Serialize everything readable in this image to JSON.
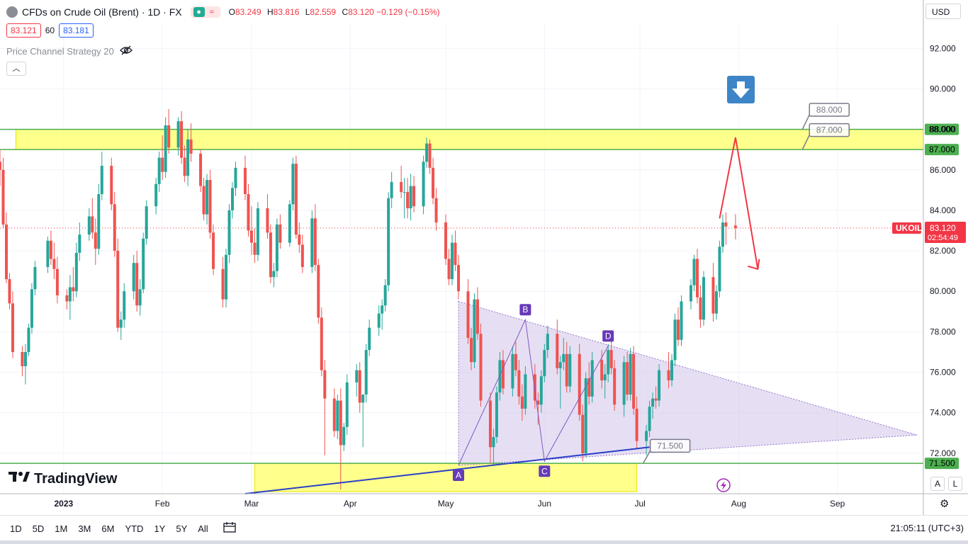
{
  "header": {
    "title": "CFDs on Crude Oil (Brent) · 1D · FX",
    "ohlc": [
      {
        "label": "O",
        "value": "83.249"
      },
      {
        "label": "H",
        "value": "83.816"
      },
      {
        "label": "L",
        "value": "82.559"
      },
      {
        "label": "C",
        "value": "83.120 −0.129 (−0.15%)"
      }
    ],
    "bid": "83.121",
    "spread": "60",
    "ask": "83.181",
    "indicator": "Price Channel Strategy 20",
    "currency": "USD"
  },
  "logo": "TradingView",
  "bottombar": {
    "timeframes": [
      "1D",
      "5D",
      "1M",
      "3M",
      "6M",
      "YTD",
      "1Y",
      "5Y",
      "All"
    ],
    "clock": "21:05:11 (UTC+3)",
    "scale_buttons": [
      "A",
      "L"
    ]
  },
  "colors": {
    "up": "#26a69a",
    "down": "#ef5350",
    "level_line": "#4caf50",
    "zone_fill": "#ffff66",
    "triangle_fill": "#d1c4e9",
    "pattern_label": "#673ab7",
    "arrow": "#f23645",
    "trendline": "#2a3fc8",
    "price_label": "#f23645"
  },
  "chart_data": {
    "type": "candlestick",
    "symbol_label": "UKOIL",
    "last_price": "83.120",
    "countdown": "02:54:49",
    "ylim": [
      70.0,
      93.2
    ],
    "y_ticks": [
      "92.000",
      "90.000",
      "88.000",
      "86.000",
      "84.000",
      "82.000",
      "80.000",
      "78.000",
      "76.000",
      "74.000",
      "72.000"
    ],
    "x_ticks": [
      {
        "label": "2023",
        "date": "2023-01-01"
      },
      {
        "label": "Feb",
        "date": "2023-02-01"
      },
      {
        "label": "Mar",
        "date": "2023-03-01"
      },
      {
        "label": "Apr",
        "date": "2023-04-01"
      },
      {
        "label": "May",
        "date": "2023-05-01"
      },
      {
        "label": "Jun",
        "date": "2023-06-01"
      },
      {
        "label": "Jul",
        "date": "2023-07-01"
      },
      {
        "label": "Aug",
        "date": "2023-08-01"
      },
      {
        "label": "Sep",
        "date": "2023-09-01"
      }
    ],
    "x_range": [
      "2022-12-12",
      "2023-09-28"
    ],
    "levels": [
      {
        "value": 88.0,
        "label": "88.000"
      },
      {
        "value": 87.0,
        "label": "87.000"
      },
      {
        "value": 71.5,
        "label": "71.500"
      }
    ],
    "zones": [
      {
        "from_date": "2022-12-17",
        "to_date": "2023-09-28",
        "top": 88.0,
        "bottom": 87.0
      },
      {
        "from_date": "2023-03-02",
        "to_date": "2023-06-30",
        "top": 71.5,
        "bottom": 70.1
      }
    ],
    "triangle": [
      {
        "date": "2023-05-05",
        "value": 79.5
      },
      {
        "date": "2023-09-26",
        "value": 72.9
      },
      {
        "date": "2023-05-05",
        "value": 71.4
      }
    ],
    "pattern_points": [
      {
        "label": "A",
        "date": "2023-05-05",
        "value": 71.4
      },
      {
        "label": "B",
        "date": "2023-05-26",
        "value": 78.6
      },
      {
        "label": "C",
        "date": "2023-06-01",
        "value": 71.6
      },
      {
        "label": "D",
        "date": "2023-06-21",
        "value": 77.3
      }
    ],
    "trendline": {
      "from": {
        "date": "2023-02-27",
        "value": 70.0
      },
      "to": {
        "date": "2023-07-04",
        "value": 72.3
      }
    },
    "callouts": [
      {
        "text": "88.000",
        "value": 88.0,
        "box_value": 89.0,
        "anchor_date": "2023-08-21"
      },
      {
        "text": "87.000",
        "value": 87.0,
        "box_value": 88.0,
        "anchor_date": "2023-08-21"
      },
      {
        "text": "71.500",
        "value": 71.5,
        "box_value": 72.4,
        "anchor_date": "2023-07-02"
      }
    ],
    "forecast_arrow": [
      {
        "date": "2023-07-26",
        "value": 83.6
      },
      {
        "date": "2023-07-31",
        "value": 87.6
      },
      {
        "date": "2023-08-07",
        "value": 81.1
      }
    ],
    "ohlc_data": [
      [
        "2022-12-12",
        86.4,
        87.0,
        85.2,
        86.0
      ],
      [
        "2022-12-13",
        86.0,
        86.6,
        83.1,
        83.3
      ],
      [
        "2022-12-14",
        83.3,
        83.9,
        80.4,
        80.6
      ],
      [
        "2022-12-15",
        80.6,
        80.9,
        79.1,
        79.4
      ],
      [
        "2022-12-16",
        79.4,
        80.0,
        76.7,
        77.0
      ],
      [
        "2022-12-19",
        77.0,
        77.3,
        75.8,
        76.3
      ],
      [
        "2022-12-20",
        76.3,
        77.4,
        75.4,
        77.0
      ],
      [
        "2022-12-21",
        77.0,
        78.4,
        76.8,
        78.2
      ],
      [
        "2022-12-22",
        78.2,
        80.4,
        77.9,
        80.1
      ],
      [
        "2022-12-23",
        80.1,
        81.5,
        79.8,
        81.2
      ],
      [
        "2022-12-27",
        81.2,
        82.7,
        80.9,
        82.5
      ],
      [
        "2022-12-28",
        82.5,
        83.0,
        81.3,
        81.6
      ],
      [
        "2022-12-29",
        81.6,
        82.4,
        80.6,
        81.1
      ],
      [
        "2022-12-30",
        81.1,
        81.7,
        79.4,
        79.8
      ],
      [
        "2023-01-02",
        79.8,
        80.1,
        79.1,
        79.5
      ],
      [
        "2023-01-03",
        79.5,
        80.8,
        78.6,
        80.2
      ],
      [
        "2023-01-04",
        80.2,
        81.2,
        79.5,
        80.0
      ],
      [
        "2023-01-05",
        80.0,
        82.4,
        79.7,
        81.9
      ],
      [
        "2023-01-06",
        81.9,
        83.4,
        81.5,
        82.8
      ],
      [
        "2023-01-09",
        82.8,
        84.1,
        82.5,
        83.7
      ],
      [
        "2023-01-10",
        83.7,
        84.6,
        82.6,
        82.9
      ],
      [
        "2023-01-11",
        82.9,
        83.6,
        81.3,
        82.1
      ],
      [
        "2023-01-12",
        82.1,
        85.3,
        81.8,
        84.8
      ],
      [
        "2023-01-13",
        84.8,
        86.9,
        84.5,
        86.2
      ],
      [
        "2023-01-16",
        86.2,
        86.6,
        84.0,
        84.3
      ],
      [
        "2023-01-17",
        84.3,
        84.9,
        81.7,
        82.0
      ],
      [
        "2023-01-18",
        82.0,
        82.6,
        78.0,
        78.2
      ],
      [
        "2023-01-19",
        78.2,
        79.0,
        77.6,
        78.6
      ],
      [
        "2023-01-20",
        78.6,
        80.4,
        78.2,
        80.0
      ],
      [
        "2023-01-23",
        80.0,
        81.8,
        79.6,
        81.4
      ],
      [
        "2023-01-24",
        81.4,
        82.0,
        79.0,
        79.3
      ],
      [
        "2023-01-25",
        79.3,
        80.6,
        78.8,
        80.1
      ],
      [
        "2023-01-26",
        80.1,
        82.9,
        79.9,
        82.6
      ],
      [
        "2023-01-27",
        82.6,
        84.5,
        82.3,
        84.2
      ],
      [
        "2023-01-30",
        84.2,
        85.6,
        83.8,
        85.3
      ],
      [
        "2023-01-31",
        85.3,
        86.9,
        84.9,
        86.6
      ],
      [
        "2023-02-01",
        86.6,
        87.7,
        85.5,
        85.9
      ],
      [
        "2023-02-02",
        85.9,
        88.6,
        85.6,
        88.2
      ],
      [
        "2023-02-03",
        88.2,
        89.0,
        86.8,
        87.1
      ],
      [
        "2023-02-06",
        87.1,
        88.6,
        86.7,
        88.4
      ],
      [
        "2023-02-07",
        88.4,
        88.9,
        86.3,
        86.6
      ],
      [
        "2023-02-08",
        86.6,
        87.2,
        85.4,
        85.7
      ],
      [
        "2023-02-09",
        85.7,
        88.0,
        85.2,
        87.5
      ],
      [
        "2023-02-10",
        87.5,
        88.3,
        86.4,
        86.8
      ],
      [
        "2023-02-13",
        86.8,
        87.0,
        84.9,
        85.2
      ],
      [
        "2023-02-14",
        85.2,
        85.6,
        83.5,
        83.8
      ],
      [
        "2023-02-15",
        83.8,
        85.8,
        83.3,
        85.5
      ],
      [
        "2023-02-16",
        85.5,
        86.0,
        82.6,
        82.9
      ],
      [
        "2023-02-17",
        82.9,
        83.3,
        80.8,
        81.1
      ],
      [
        "2023-02-20",
        81.1,
        81.7,
        79.2,
        79.6
      ],
      [
        "2023-02-21",
        79.6,
        82.1,
        79.2,
        81.8
      ],
      [
        "2023-02-22",
        81.8,
        84.3,
        81.4,
        84.0
      ],
      [
        "2023-02-23",
        84.0,
        85.4,
        83.6,
        85.1
      ],
      [
        "2023-02-24",
        85.1,
        86.4,
        84.7,
        86.1
      ],
      [
        "2023-02-27",
        86.1,
        86.7,
        84.5,
        84.8
      ],
      [
        "2023-02-28",
        84.8,
        85.3,
        82.7,
        83.0
      ],
      [
        "2023-03-01",
        83.0,
        84.2,
        81.8,
        82.4
      ],
      [
        "2023-03-02",
        82.4,
        83.1,
        81.4,
        81.8
      ],
      [
        "2023-03-03",
        81.8,
        84.4,
        81.5,
        84.1
      ],
      [
        "2023-03-06",
        84.1,
        84.8,
        82.6,
        82.9
      ],
      [
        "2023-03-07",
        82.9,
        83.3,
        80.4,
        80.7
      ],
      [
        "2023-03-08",
        80.7,
        81.4,
        80.2,
        81.0
      ],
      [
        "2023-03-09",
        81.0,
        83.6,
        80.7,
        83.3
      ],
      [
        "2023-03-10",
        83.3,
        83.8,
        82.1,
        82.4
      ],
      [
        "2023-03-13",
        82.4,
        84.5,
        82.2,
        84.3
      ],
      [
        "2023-03-14",
        84.3,
        86.6,
        84.0,
        86.3
      ],
      [
        "2023-03-15",
        86.3,
        86.7,
        82.6,
        82.8
      ],
      [
        "2023-03-16",
        82.8,
        83.4,
        81.9,
        82.3
      ],
      [
        "2023-03-17",
        82.3,
        82.8,
        80.9,
        81.2
      ],
      [
        "2023-03-20",
        81.2,
        84.0,
        80.9,
        83.6
      ],
      [
        "2023-03-21",
        83.6,
        84.3,
        81.0,
        81.3
      ],
      [
        "2023-03-22",
        81.3,
        81.6,
        78.4,
        78.7
      ],
      [
        "2023-03-23",
        78.7,
        79.2,
        75.8,
        76.1
      ],
      [
        "2023-03-24",
        76.1,
        76.6,
        71.9,
        74.7
      ],
      [
        "2023-03-27",
        74.7,
        75.2,
        72.8,
        73.1
      ],
      [
        "2023-03-28",
        73.1,
        74.9,
        72.7,
        74.6
      ],
      [
        "2023-03-29",
        74.6,
        75.2,
        70.2,
        72.4
      ],
      [
        "2023-03-30",
        72.4,
        73.5,
        72.1,
        73.3
      ],
      [
        "2023-03-31",
        73.3,
        75.9,
        72.9,
        75.5
      ],
      [
        "2023-04-03",
        75.5,
        76.4,
        74.8,
        76.1
      ],
      [
        "2023-04-04",
        76.1,
        76.5,
        74.0,
        74.5
      ],
      [
        "2023-04-05",
        74.5,
        74.9,
        72.3,
        74.9
      ],
      [
        "2023-04-06",
        74.9,
        77.4,
        74.5,
        77.1
      ],
      [
        "2023-04-07",
        77.1,
        78.6,
        76.8,
        78.2
      ],
      [
        "2023-04-10",
        78.2,
        79.3,
        77.8,
        78.9
      ],
      [
        "2023-04-11",
        78.9,
        79.6,
        78.1,
        79.3
      ],
      [
        "2023-04-12",
        79.3,
        80.6,
        79.0,
        80.3
      ],
      [
        "2023-04-13",
        80.3,
        84.9,
        80.0,
        84.6
      ],
      [
        "2023-04-14",
        84.6,
        85.9,
        84.1,
        85.4
      ],
      [
        "2023-04-17",
        85.4,
        86.2,
        84.6,
        84.9
      ],
      [
        "2023-04-18",
        84.9,
        85.6,
        83.6,
        84.9
      ],
      [
        "2023-04-19",
        84.9,
        85.6,
        83.6,
        84.1
      ],
      [
        "2023-04-20",
        84.1,
        85.8,
        83.5,
        85.2
      ],
      [
        "2023-04-21",
        85.2,
        85.7,
        83.9,
        84.2
      ],
      [
        "2023-04-24",
        84.2,
        86.7,
        83.8,
        86.4
      ],
      [
        "2023-04-25",
        86.4,
        87.6,
        86.1,
        87.3
      ],
      [
        "2023-04-26",
        87.3,
        87.5,
        85.8,
        86.1
      ],
      [
        "2023-04-27",
        86.1,
        86.6,
        84.3,
        84.6
      ],
      [
        "2023-04-28",
        84.6,
        85.1,
        83.0,
        83.4
      ],
      [
        "2023-05-01",
        83.4,
        83.8,
        81.3,
        81.6
      ],
      [
        "2023-05-02",
        81.6,
        82.1,
        80.3,
        80.6
      ],
      [
        "2023-05-03",
        80.6,
        82.8,
        80.3,
        82.4
      ],
      [
        "2023-05-04",
        82.4,
        83.0,
        81.0,
        81.3
      ],
      [
        "2023-05-05",
        81.3,
        81.8,
        79.6,
        80.0
      ],
      [
        "2023-05-08",
        80.0,
        80.6,
        77.4,
        77.7
      ],
      [
        "2023-05-09",
        77.7,
        78.2,
        76.1,
        76.5
      ],
      [
        "2023-05-10",
        76.5,
        79.9,
        76.2,
        79.6
      ],
      [
        "2023-05-11",
        79.6,
        80.2,
        77.6,
        77.9
      ],
      [
        "2023-05-12",
        77.9,
        78.4,
        74.3,
        74.6
      ],
      [
        "2023-05-15",
        74.6,
        75.0,
        71.5,
        72.3
      ],
      [
        "2023-05-16",
        72.3,
        73.2,
        71.4,
        72.8
      ],
      [
        "2023-05-17",
        72.8,
        75.3,
        72.5,
        75.0
      ],
      [
        "2023-05-18",
        75.0,
        77.0,
        74.6,
        76.6
      ],
      [
        "2023-05-19",
        76.6,
        77.1,
        74.9,
        75.2
      ],
      [
        "2023-05-22",
        75.2,
        77.3,
        74.8,
        76.9
      ],
      [
        "2023-05-23",
        76.9,
        77.5,
        75.8,
        76.1
      ],
      [
        "2023-05-24",
        76.1,
        76.6,
        74.4,
        74.8
      ],
      [
        "2023-05-25",
        74.8,
        75.4,
        73.6,
        74.2
      ],
      [
        "2023-05-26",
        74.2,
        76.3,
        73.9,
        75.9
      ],
      [
        "2023-05-29",
        75.9,
        76.4,
        74.2,
        74.6
      ],
      [
        "2023-05-30",
        74.6,
        75.0,
        73.4,
        74.4
      ],
      [
        "2023-05-31",
        74.4,
        76.1,
        74.0,
        75.8
      ],
      [
        "2023-06-01",
        75.8,
        77.4,
        75.5,
        77.1
      ],
      [
        "2023-06-02",
        77.1,
        78.3,
        76.7,
        77.9
      ],
      [
        "2023-06-05",
        77.9,
        78.6,
        75.9,
        76.2
      ],
      [
        "2023-06-06",
        76.2,
        76.8,
        74.2,
        76.5
      ],
      [
        "2023-06-07",
        76.5,
        77.7,
        76.1,
        76.9
      ],
      [
        "2023-06-08",
        76.9,
        77.5,
        75.0,
        75.3
      ],
      [
        "2023-06-09",
        75.3,
        77.3,
        75.0,
        76.9
      ],
      [
        "2023-06-12",
        76.9,
        77.4,
        73.6,
        73.9
      ],
      [
        "2023-06-13",
        73.9,
        74.4,
        71.6,
        72.0
      ],
      [
        "2023-06-14",
        72.0,
        76.0,
        71.8,
        75.7
      ],
      [
        "2023-06-15",
        75.7,
        76.5,
        74.4,
        74.8
      ],
      [
        "2023-06-16",
        74.8,
        77.0,
        74.5,
        76.6
      ],
      [
        "2023-06-19",
        76.6,
        77.1,
        75.2,
        75.6
      ],
      [
        "2023-06-20",
        75.6,
        76.4,
        74.7,
        75.9
      ],
      [
        "2023-06-21",
        75.9,
        77.4,
        75.5,
        77.1
      ],
      [
        "2023-06-22",
        77.1,
        77.8,
        75.9,
        76.2
      ],
      [
        "2023-06-23",
        76.2,
        76.6,
        74.1,
        74.4
      ],
      [
        "2023-06-26",
        74.4,
        76.8,
        73.8,
        76.5
      ],
      [
        "2023-06-27",
        76.5,
        77.0,
        74.6,
        74.9
      ],
      [
        "2023-06-28",
        74.9,
        77.2,
        74.6,
        76.9
      ],
      [
        "2023-06-29",
        76.9,
        77.3,
        73.9,
        74.2
      ],
      [
        "2023-06-30",
        74.2,
        74.8,
        72.2,
        72.6
      ],
      [
        "2023-07-03",
        72.6,
        73.4,
        71.9,
        73.1
      ],
      [
        "2023-07-04",
        73.1,
        74.6,
        72.8,
        74.3
      ],
      [
        "2023-07-05",
        74.3,
        75.0,
        73.7,
        74.7
      ],
      [
        "2023-07-06",
        74.7,
        75.3,
        74.2,
        74.6
      ],
      [
        "2023-07-07",
        74.6,
        76.4,
        74.3,
        76.1
      ],
      [
        "2023-07-10",
        76.1,
        77.0,
        75.2,
        75.6
      ],
      [
        "2023-07-11",
        75.6,
        76.9,
        75.3,
        76.6
      ],
      [
        "2023-07-12",
        76.6,
        78.9,
        76.3,
        78.6
      ],
      [
        "2023-07-13",
        78.6,
        79.2,
        77.3,
        77.6
      ],
      [
        "2023-07-14",
        77.6,
        79.8,
        77.3,
        79.5
      ],
      [
        "2023-07-17",
        79.5,
        80.6,
        79.1,
        80.3
      ],
      [
        "2023-07-18",
        80.3,
        81.8,
        80.0,
        81.6
      ],
      [
        "2023-07-19",
        81.6,
        82.1,
        79.4,
        79.7
      ],
      [
        "2023-07-20",
        79.7,
        80.3,
        78.2,
        78.6
      ],
      [
        "2023-07-21",
        78.6,
        81.0,
        78.3,
        80.7
      ],
      [
        "2023-07-24",
        80.7,
        81.4,
        78.5,
        78.9
      ],
      [
        "2023-07-25",
        78.9,
        80.3,
        78.6,
        80.0
      ],
      [
        "2023-07-26",
        80.0,
        82.5,
        79.7,
        82.2
      ],
      [
        "2023-07-27",
        82.2,
        83.8,
        81.9,
        83.4
      ],
      [
        "2023-07-28",
        83.4,
        83.9,
        82.3,
        83.2
      ],
      [
        "2023-07-31",
        83.249,
        83.816,
        82.559,
        83.12
      ]
    ]
  }
}
